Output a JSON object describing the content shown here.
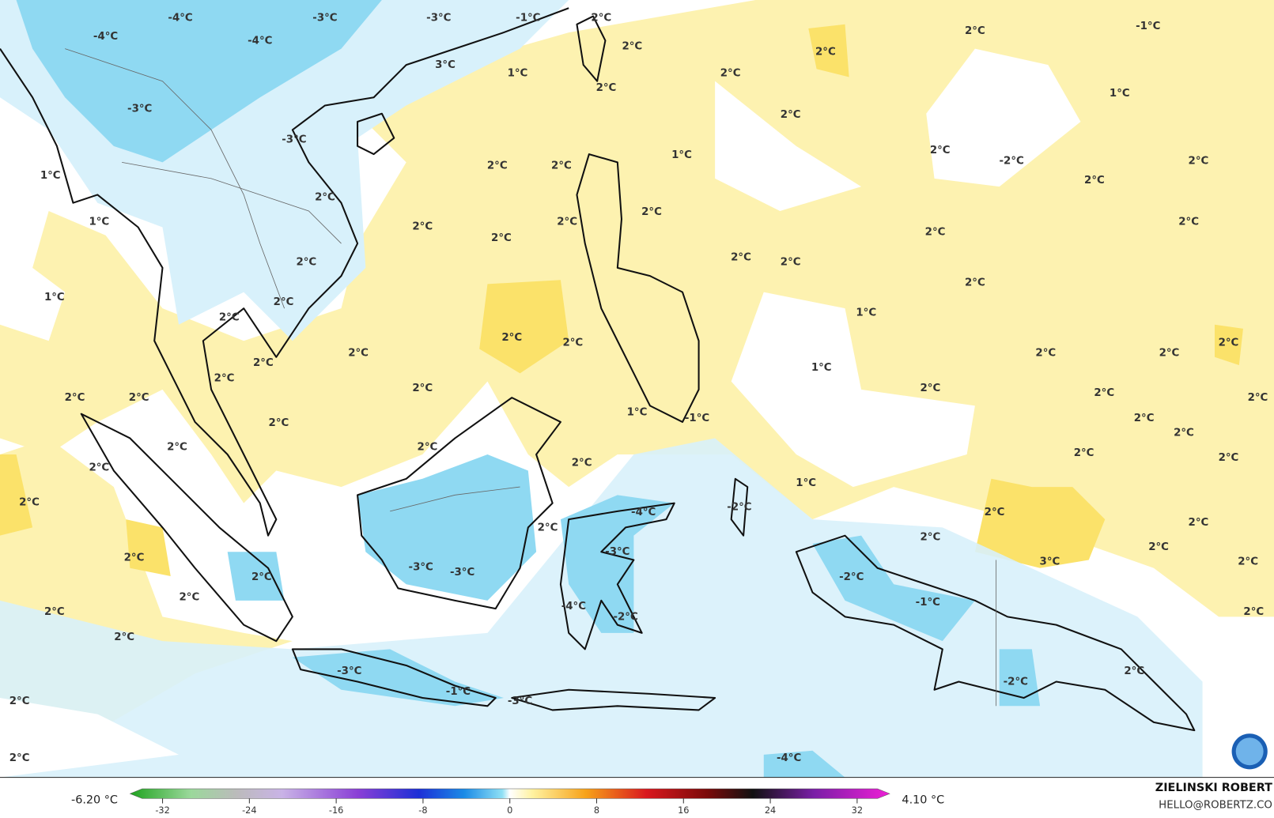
{
  "map": {
    "labels": [
      "-4°C",
      "-3°C",
      "-3°C",
      "-1°C",
      "2°C",
      "2°C",
      "-1°C",
      "-4°C",
      "-4°C",
      "2°C",
      "2°C",
      "3°C",
      "1°C",
      "2°C",
      "2°C",
      "1°C",
      "-3°C",
      "2°C",
      "-3°C",
      "2°C",
      "1°C",
      "-2°C",
      "2°C",
      "1°C",
      "2°C",
      "2°C",
      "2°C",
      "2°C",
      "2°C",
      "1°C",
      "2°C",
      "2°C",
      "2°C",
      "2°C",
      "2°C",
      "2°C",
      "2°C",
      "2°C",
      "2°C",
      "1°C",
      "2°C",
      "1°C",
      "2°C",
      "2°C",
      "2°C",
      "2°C",
      "2°C",
      "2°C",
      "2°C",
      "2°C",
      "1°C",
      "2°C",
      "2°C",
      "2°C",
      "2°C",
      "2°C",
      "2°C",
      "2°C",
      "1°C",
      "-1°C",
      "2°C",
      "2°C",
      "2°C",
      "2°C",
      "2°C",
      "2°C",
      "2°C",
      "2°C",
      "2°C",
      "1°C",
      "2°C",
      "-4°C",
      "-2°C",
      "2°C",
      "2°C",
      "2°C",
      "2°C",
      "2°C",
      "2°C",
      "-3°C",
      "3°C",
      "2°C",
      "-3°C",
      "-3°C",
      "2°C",
      "-2°C",
      "2°C",
      "-1°C",
      "-4°C",
      "2°C",
      "-2°C",
      "2°C",
      "2°C",
      "-3°C",
      "2°C",
      "-2°C",
      "-1°C",
      "2°C",
      "-3°C",
      "2°C",
      "-4°C"
    ],
    "colorbar": {
      "min_label": "-6.20 °C",
      "max_label": "4.10 °C",
      "range": [
        -35,
        35
      ],
      "ticks": [
        -32,
        -24,
        -16,
        -8,
        0,
        8,
        16,
        24,
        32
      ]
    },
    "credit": {
      "author": "ZIELINSKI ROBERT",
      "email": "HELLO@ROBERTZ.CO"
    },
    "logo": "NOAA"
  }
}
